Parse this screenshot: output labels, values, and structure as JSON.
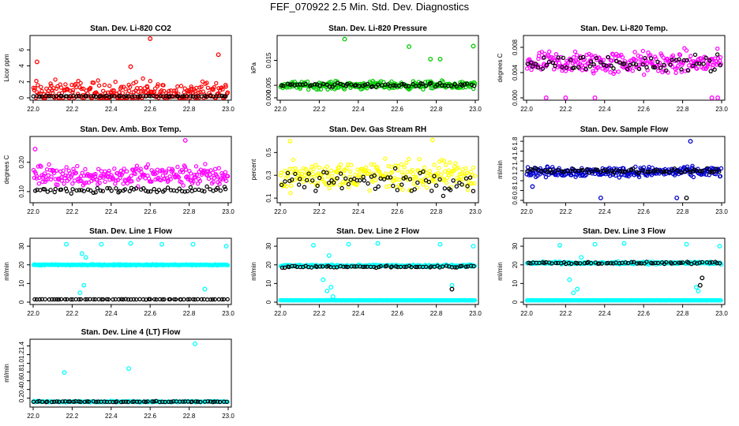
{
  "title": "FEF_070922  2.5 Min. Std. Dev. Diagnostics",
  "chart_data": [
    {
      "type": "scatter",
      "title": "Stan. Dev. Li-820 CO2",
      "ylabel": "Licor ppm",
      "xlim": [
        22.0,
        23.0
      ],
      "ylim": [
        0,
        7.5
      ],
      "xticks": [
        "22.0",
        "22.2",
        "22.4",
        "22.6",
        "22.8",
        "23.0"
      ],
      "yticks": [
        "0",
        "2",
        "4",
        "6"
      ],
      "series": [
        {
          "color": "#ff0000",
          "center": 0.6,
          "spread": 1.5,
          "outliers": [
            [
              22.6,
              7.4
            ],
            [
              22.95,
              5.4
            ],
            [
              22.02,
              4.5
            ],
            [
              22.5,
              3.9
            ]
          ]
        },
        {
          "color": "#000000",
          "center": 0.2,
          "spread": 0.05,
          "outliers": []
        }
      ]
    },
    {
      "type": "scatter",
      "title": "Stan. Dev. Li-820 Pressure",
      "ylabel": "kPa",
      "xlim": [
        22.0,
        23.0
      ],
      "ylim": [
        0,
        0.024
      ],
      "xticks": [
        "22.0",
        "22.2",
        "22.4",
        "22.6",
        "22.8",
        "23.0"
      ],
      "yticks": [
        "0.000",
        "0.005",
        "0.015"
      ],
      "series": [
        {
          "color": "#00cc00",
          "center": 0.005,
          "spread": 0.0015,
          "outliers": [
            [
              22.33,
              0.0235
            ],
            [
              22.66,
              0.0205
            ],
            [
              22.99,
              0.0207
            ],
            [
              22.77,
              0.0155
            ],
            [
              22.82,
              0.0155
            ]
          ]
        },
        {
          "color": "#000000",
          "center": 0.005,
          "spread": 0.0008,
          "outliers": []
        }
      ]
    },
    {
      "type": "scatter",
      "title": "Stan. Dev. Li-820 Temp.",
      "ylabel": "degrees C",
      "xlim": [
        22.0,
        23.0
      ],
      "ylim": [
        0,
        0.0095
      ],
      "xticks": [
        "22.0",
        "22.2",
        "22.4",
        "22.6",
        "22.8",
        "23.0"
      ],
      "yticks": [
        "0.000",
        "0.004",
        "0.008"
      ],
      "series": [
        {
          "color": "#ff00ff",
          "center": 0.0055,
          "spread": 0.0018,
          "outliers": [
            [
              22.1,
              0.0
            ],
            [
              22.2,
              0.0
            ],
            [
              22.35,
              0.0
            ],
            [
              22.95,
              0.0
            ],
            [
              22.98,
              0.0
            ]
          ]
        },
        {
          "color": "#000000",
          "center": 0.0055,
          "spread": 0.0012,
          "outliers": []
        }
      ]
    },
    {
      "type": "scatter",
      "title": "Stan. Dev. Amb. Box Temp.",
      "ylabel": "degrees C",
      "xlim": [
        22.0,
        23.0
      ],
      "ylim": [
        0.07,
        0.28
      ],
      "xticks": [
        "22.0",
        "22.2",
        "22.4",
        "22.6",
        "22.8",
        "23.0"
      ],
      "yticks": [
        "0.10",
        "0.20"
      ],
      "series": [
        {
          "color": "#ff00ff",
          "center": 0.155,
          "spread": 0.035,
          "outliers": [
            [
              22.78,
              0.275
            ],
            [
              22.01,
              0.245
            ]
          ]
        },
        {
          "color": "#000000",
          "center": 0.105,
          "spread": 0.01,
          "outliers": []
        }
      ]
    },
    {
      "type": "scatter",
      "title": "Stan. Dev. Gas Stream RH",
      "ylabel": "percent",
      "xlim": [
        22.0,
        23.0
      ],
      "ylim": [
        0.08,
        0.62
      ],
      "xticks": [
        "22.0",
        "22.2",
        "22.4",
        "22.6",
        "22.8",
        "23.0"
      ],
      "yticks": [
        "0.1",
        "0.3",
        "0.5"
      ],
      "series": [
        {
          "color": "#ffff00",
          "center": 0.3,
          "spread": 0.12,
          "outliers": [
            [
              22.05,
              0.6
            ],
            [
              22.78,
              0.61
            ]
          ]
        },
        {
          "color": "#000000",
          "center": 0.25,
          "spread": 0.1,
          "outliers": []
        }
      ]
    },
    {
      "type": "scatter",
      "title": "Stan. Dev. Sample Flow",
      "ylabel": "ml/min",
      "xlim": [
        22.0,
        23.0
      ],
      "ylim": [
        0.6,
        1.85
      ],
      "xticks": [
        "22.0",
        "22.2",
        "22.4",
        "22.6",
        "22.8",
        "23.0"
      ],
      "yticks": [
        "0.6",
        "0.8",
        "1.0",
        "1.2",
        "1.4",
        "1.6",
        "1.8"
      ],
      "series": [
        {
          "color": "#0000cc",
          "center": 1.18,
          "spread": 0.1,
          "outliers": [
            [
              22.84,
              1.8
            ],
            [
              22.03,
              0.88
            ],
            [
              22.38,
              0.65
            ],
            [
              22.77,
              0.65
            ]
          ]
        },
        {
          "color": "#000000",
          "center": 1.2,
          "spread": 0.04,
          "outliers": [
            [
              22.82,
              0.65
            ]
          ]
        }
      ]
    },
    {
      "type": "scatter",
      "title": "Stan. Dev. Line 1 Flow",
      "ylabel": "ml/min",
      "xlim": [
        22.0,
        23.0
      ],
      "ylim": [
        0,
        33
      ],
      "xticks": [
        "22.0",
        "22.2",
        "22.4",
        "22.6",
        "22.8",
        "23.0"
      ],
      "yticks": [
        "0",
        "10",
        "20",
        "30"
      ],
      "series": [
        {
          "color": "#00ffff",
          "center": 20.0,
          "spread": 0.3,
          "outliers": [
            [
              22.17,
              31
            ],
            [
              22.35,
              31
            ],
            [
              22.5,
              31.5
            ],
            [
              22.66,
              31
            ],
            [
              22.82,
              31
            ],
            [
              22.99,
              30
            ],
            [
              22.24,
              5
            ],
            [
              22.26,
              9
            ],
            [
              22.27,
              24
            ],
            [
              22.25,
              26
            ],
            [
              22.88,
              7
            ]
          ]
        },
        {
          "color": "#000000",
          "center": 1.5,
          "spread": 0.1,
          "outliers": []
        }
      ]
    },
    {
      "type": "scatter",
      "title": "Stan. Dev. Line 2 Flow",
      "ylabel": "ml/min",
      "xlim": [
        22.0,
        23.0
      ],
      "ylim": [
        0,
        33
      ],
      "xticks": [
        "22.0",
        "22.2",
        "22.4",
        "22.6",
        "22.8",
        "23.0"
      ],
      "yticks": [
        "0",
        "10",
        "20",
        "30"
      ],
      "series": [
        {
          "color": "#00ffff",
          "center": 19.5,
          "spread": 0.6,
          "outliers": [
            [
              22.17,
              30.5
            ],
            [
              22.35,
              31
            ],
            [
              22.5,
              31.5
            ],
            [
              22.82,
              31
            ],
            [
              22.99,
              30
            ],
            [
              22.22,
              12
            ],
            [
              22.24,
              6
            ],
            [
              22.26,
              8
            ],
            [
              22.27,
              3
            ],
            [
              22.25,
              25
            ],
            [
              22.88,
              9
            ]
          ]
        },
        {
          "color": "#00ffff",
          "center": 1.0,
          "spread": 0.05,
          "outliers": []
        },
        {
          "color": "#000000",
          "center": 19.0,
          "spread": 0.5,
          "outliers": [
            [
              22.88,
              7
            ]
          ]
        }
      ]
    },
    {
      "type": "scatter",
      "title": "Stan. Dev. Line 3 Flow",
      "ylabel": "ml/min",
      "xlim": [
        22.0,
        23.0
      ],
      "ylim": [
        0,
        33
      ],
      "xticks": [
        "22.0",
        "22.2",
        "22.4",
        "22.6",
        "22.8",
        "23.0"
      ],
      "yticks": [
        "0",
        "10",
        "20",
        "30"
      ],
      "series": [
        {
          "color": "#00ffff",
          "center": 21.0,
          "spread": 0.6,
          "outliers": [
            [
              22.17,
              30.5
            ],
            [
              22.35,
              31
            ],
            [
              22.5,
              31.5
            ],
            [
              22.82,
              31
            ],
            [
              22.99,
              30
            ],
            [
              22.22,
              12
            ],
            [
              22.24,
              5
            ],
            [
              22.26,
              7
            ],
            [
              22.28,
              24
            ],
            [
              22.88,
              6
            ],
            [
              22.87,
              8
            ]
          ]
        },
        {
          "color": "#00ffff",
          "center": 1.0,
          "spread": 0.05,
          "outliers": []
        },
        {
          "color": "#000000",
          "center": 21.0,
          "spread": 0.5,
          "outliers": [
            [
              22.89,
              9
            ],
            [
              22.9,
              13
            ]
          ]
        }
      ]
    },
    {
      "type": "scatter",
      "title": "Stan. Dev. Line 4 (LT) Flow",
      "ylabel": "ml/min",
      "xlim": [
        22.0,
        23.0
      ],
      "ylim": [
        0.05,
        1.5
      ],
      "xticks": [
        "22.0",
        "22.2",
        "22.4",
        "22.6",
        "22.8",
        "23.0"
      ],
      "yticks": [
        "0.2",
        "0.4",
        "0.6",
        "0.8",
        "1.0",
        "1.2",
        "1.4"
      ],
      "series": [
        {
          "color": "#00ffff",
          "center": 0.12,
          "spread": 0.015,
          "outliers": [
            [
              22.16,
              0.79
            ],
            [
              22.49,
              0.88
            ],
            [
              22.83,
              1.45
            ]
          ]
        },
        {
          "color": "#000000",
          "center": 0.12,
          "spread": 0.01,
          "outliers": []
        }
      ]
    }
  ]
}
